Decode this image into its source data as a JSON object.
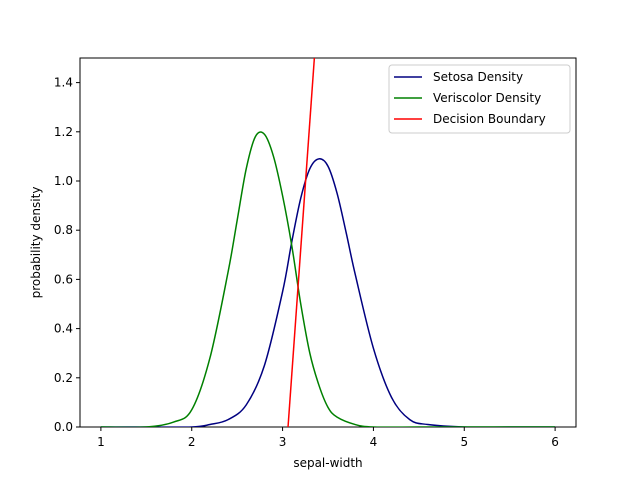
{
  "chart_data": {
    "type": "line",
    "title": "",
    "xlabel": "sepal-width",
    "ylabel": "probability density",
    "xlim": [
      0.77,
      6.23
    ],
    "ylim": [
      0,
      1.5
    ],
    "xticks": [
      1,
      2,
      3,
      4,
      5,
      6
    ],
    "yticks": [
      0.0,
      0.2,
      0.4,
      0.6,
      0.8,
      1.0,
      1.2,
      1.4
    ],
    "xtick_labels": [
      "1",
      "2",
      "3",
      "4",
      "5",
      "6"
    ],
    "ytick_labels": [
      "0.0",
      "0.2",
      "0.4",
      "0.6",
      "0.8",
      "1.0",
      "1.2",
      "1.4"
    ],
    "grid": false,
    "legend_position": "top-right",
    "series": [
      {
        "name": "Setosa Density",
        "color": "#000080",
        "x": [
          1.0,
          1.5,
          2.0,
          2.2,
          2.4,
          2.6,
          2.8,
          3.0,
          3.1,
          3.2,
          3.3,
          3.4,
          3.5,
          3.6,
          3.7,
          3.8,
          4.0,
          4.2,
          4.4,
          4.6,
          5.0,
          5.5,
          6.0
        ],
        "y": [
          0.0,
          0.0,
          0.0,
          0.01,
          0.03,
          0.09,
          0.25,
          0.55,
          0.75,
          0.93,
          1.05,
          1.09,
          1.06,
          0.95,
          0.79,
          0.62,
          0.32,
          0.12,
          0.03,
          0.01,
          0.0,
          0.0,
          0.0
        ]
      },
      {
        "name": "Veriscolor Density",
        "color": "#008000",
        "x": [
          1.0,
          1.5,
          1.8,
          2.0,
          2.2,
          2.4,
          2.5,
          2.6,
          2.7,
          2.8,
          2.9,
          3.0,
          3.1,
          3.2,
          3.3,
          3.4,
          3.5,
          3.6,
          3.8,
          4.0,
          4.5,
          5.0,
          6.0
        ],
        "y": [
          0.0,
          0.0,
          0.02,
          0.07,
          0.28,
          0.63,
          0.84,
          1.05,
          1.18,
          1.19,
          1.1,
          0.94,
          0.74,
          0.5,
          0.3,
          0.17,
          0.08,
          0.04,
          0.01,
          0.0,
          0.0,
          0.0,
          0.0
        ]
      },
      {
        "name": "Decision Boundary",
        "color": "#ff0000",
        "x": [
          3.06,
          3.35
        ],
        "y": [
          0.0,
          1.5
        ]
      }
    ]
  }
}
